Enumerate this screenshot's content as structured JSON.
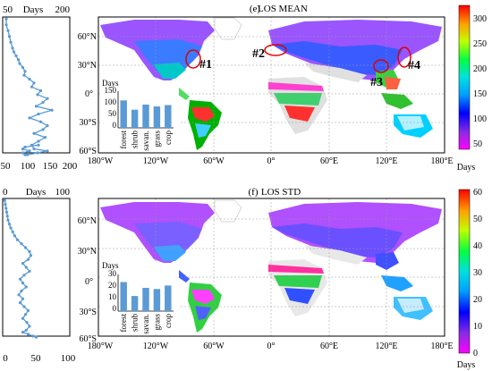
{
  "figure": {
    "panels": [
      {
        "label": "(e)",
        "title": "LOS MEAN",
        "lat_ticks": [
          "60°N",
          "30°N",
          "0°",
          "30°S",
          "60°S"
        ],
        "lon_ticks": [
          "180°W",
          "120°W",
          "60°W",
          "0°",
          "60°E",
          "120°E",
          "180°E"
        ],
        "colorbar": {
          "ticks": [
            "300",
            "250",
            "200",
            "150",
            "100",
            "50"
          ],
          "unit": "Days",
          "min": 40,
          "max": 330
        },
        "profile": {
          "top_left": "50",
          "top_unit": "Days",
          "top_right": "200",
          "bottom_ticks": [
            "50",
            "100",
            "150",
            "200"
          ]
        },
        "annotations": [
          "#1",
          "#2",
          "#3",
          "#4"
        ],
        "inset": {
          "ylabel": "Days",
          "yticks": [
            "150",
            "100",
            "50",
            "0"
          ]
        }
      },
      {
        "label": "(f)",
        "title": "LOS STD",
        "lat_ticks": [
          "60°N",
          "30°N",
          "0°",
          "30°S",
          "60°S"
        ],
        "lon_ticks": [
          "180°W",
          "120°W",
          "60°W",
          "0°",
          "60°E",
          "120°E",
          "180°E"
        ],
        "colorbar": {
          "ticks": [
            "60",
            "50",
            "40",
            "30",
            "20",
            "10",
            "0"
          ],
          "unit": "Days",
          "min": 0,
          "max": 60
        },
        "profile": {
          "top_left": "0",
          "top_unit": "Days",
          "top_right": "100",
          "bottom_ticks": [
            "0",
            "50",
            "100"
          ]
        },
        "annotations": [],
        "inset": {
          "ylabel": "Days",
          "yticks": [
            "30",
            "20",
            "10",
            "0"
          ]
        }
      }
    ]
  },
  "chart_data": [
    {
      "type": "bar",
      "panel": "e",
      "categories": [
        "forest",
        "shrub",
        "savan.",
        "grass",
        "crop"
      ],
      "values": [
        118,
        78,
        100,
        92,
        98
      ],
      "ylabel": "Days",
      "ylim": [
        0,
        150
      ],
      "color": "#5b9bd5"
    },
    {
      "type": "bar",
      "panel": "f",
      "categories": [
        "forest",
        "shrub",
        "savan.",
        "grass",
        "crop"
      ],
      "values": [
        25,
        13,
        20,
        19,
        22
      ],
      "ylabel": "Days",
      "ylim": [
        0,
        30
      ],
      "color": "#5b9bd5"
    },
    {
      "type": "line",
      "panel": "e",
      "description_axes": "x = Days, y = latitude",
      "xlim": [
        50,
        200
      ],
      "ylim": [
        -60,
        80
      ],
      "x": [
        58,
        58,
        62,
        65,
        68,
        72,
        75,
        80,
        85,
        88,
        95,
        100,
        98,
        110,
        120,
        115,
        135,
        128,
        150,
        140,
        125,
        160,
        130,
        110,
        135,
        150,
        140,
        120,
        145,
        130,
        115,
        120,
        150,
        128,
        105,
        100,
        95,
        110,
        95,
        100,
        130
      ],
      "y": [
        78,
        72,
        66,
        60,
        54,
        48,
        44,
        40,
        36,
        32,
        28,
        24,
        20,
        16,
        12,
        8,
        4,
        0,
        -4,
        -8,
        -12,
        -16,
        -20,
        -24,
        -28,
        -32,
        -36,
        -40,
        -44,
        -48,
        -52,
        -56,
        -58,
        -60,
        -62,
        -62,
        -60,
        -58,
        -56,
        -54,
        -52
      ]
    },
    {
      "type": "line",
      "panel": "f",
      "description_axes": "x = Days, y = latitude",
      "xlim": [
        0,
        100
      ],
      "ylim": [
        -60,
        80
      ],
      "x": [
        3,
        4,
        5,
        6,
        7,
        8,
        10,
        12,
        15,
        18,
        22,
        28,
        34,
        40,
        42,
        38,
        30,
        35,
        40,
        32,
        26,
        30,
        35,
        28,
        24,
        30,
        26,
        32,
        38,
        34,
        30,
        36,
        40,
        35,
        30,
        38,
        45,
        50
      ],
      "y": [
        78,
        74,
        70,
        66,
        62,
        58,
        54,
        50,
        46,
        42,
        38,
        34,
        30,
        26,
        22,
        18,
        14,
        10,
        6,
        2,
        -2,
        -6,
        -10,
        -14,
        -18,
        -22,
        -26,
        -30,
        -34,
        -38,
        -42,
        -46,
        -50,
        -54,
        -56,
        -58,
        -60,
        -61
      ]
    }
  ]
}
